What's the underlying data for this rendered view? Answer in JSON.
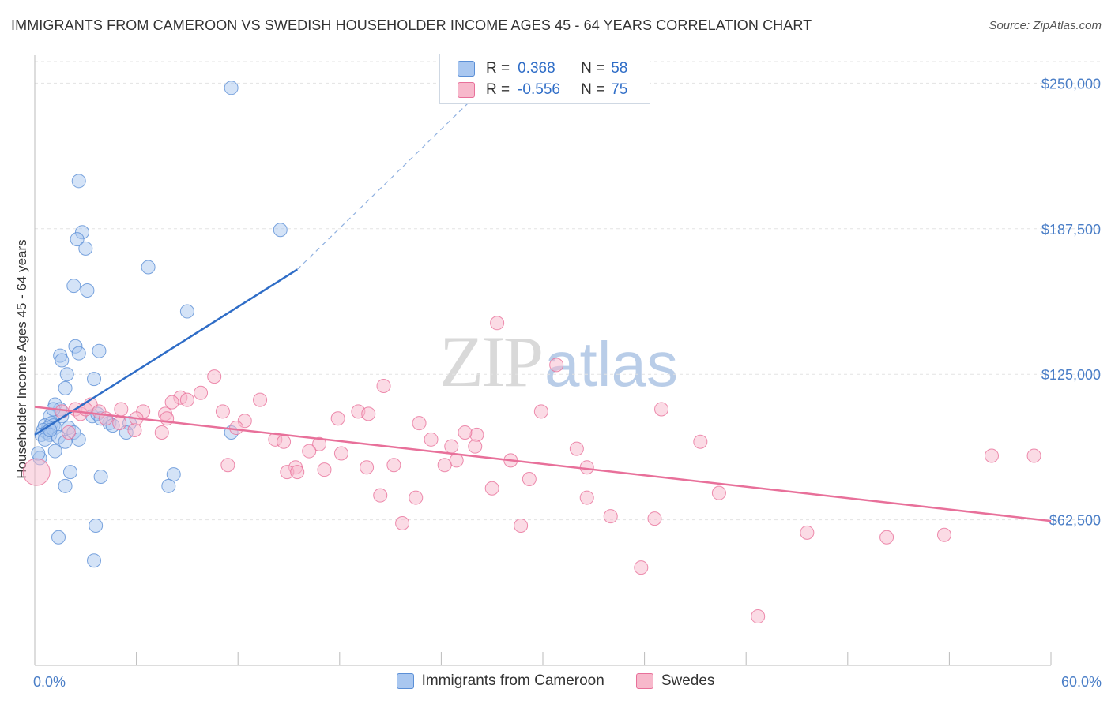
{
  "title": "IMMIGRANTS FROM CAMEROON VS SWEDISH HOUSEHOLDER INCOME AGES 45 - 64 YEARS CORRELATION CHART",
  "source": "Source: ZipAtlas.com",
  "watermark": {
    "zip": "ZIP",
    "atlas": "atlas"
  },
  "stats": [
    {
      "r_label": "R =",
      "r_value": "0.368",
      "n_label": "N =",
      "n_value": "58",
      "color": "#a9c7f0"
    },
    {
      "r_label": "R =",
      "r_value": "-0.556",
      "n_label": "N =",
      "n_value": "75",
      "color": "#f7b8cb"
    }
  ],
  "legend": [
    {
      "label": "Immigrants from Cameroon",
      "color": "#a9c7f0"
    },
    {
      "label": "Swedes",
      "color": "#f7b8cb"
    }
  ],
  "chart_data": {
    "type": "scatter",
    "title": "IMMIGRANTS FROM CAMEROON VS SWEDISH HOUSEHOLDER INCOME AGES 45 - 64 YEARS CORRELATION CHART",
    "xlabel": "",
    "ylabel": "Householder Income Ages 45 - 64 years",
    "xlim": [
      0,
      60
    ],
    "ylim": [
      0,
      262000
    ],
    "x_tick_labels": [
      "0.0%",
      "60.0%"
    ],
    "y_ticks": [
      62500,
      125000,
      187500,
      250000
    ],
    "y_tick_labels": [
      "$62,500",
      "$125,000",
      "$187,500",
      "$250,000"
    ],
    "series": [
      {
        "name": "Immigrants from Cameroon",
        "color": "#5b8fd6",
        "fill": "#a9c7f0",
        "trend": {
          "x0": 0,
          "y0": 99000,
          "x1": 15.5,
          "y1": 170000,
          "x_dash_end": 27.5,
          "y_dash_end": 255000
        },
        "points": [
          [
            11.6,
            248000
          ],
          [
            2.6,
            208000
          ],
          [
            14.5,
            187000
          ],
          [
            2.8,
            186000
          ],
          [
            2.5,
            183000
          ],
          [
            3.0,
            179000
          ],
          [
            6.7,
            171000
          ],
          [
            2.3,
            163000
          ],
          [
            3.1,
            161000
          ],
          [
            9.0,
            152000
          ],
          [
            2.4,
            137000
          ],
          [
            3.8,
            135000
          ],
          [
            2.6,
            134000
          ],
          [
            1.5,
            133000
          ],
          [
            1.6,
            131000
          ],
          [
            1.9,
            125000
          ],
          [
            3.5,
            123000
          ],
          [
            1.8,
            119000
          ],
          [
            1.2,
            112000
          ],
          [
            1.5,
            110000
          ],
          [
            0.9,
            107000
          ],
          [
            1.6,
            107000
          ],
          [
            3.4,
            107000
          ],
          [
            3.7,
            108000
          ],
          [
            0.6,
            103000
          ],
          [
            1.0,
            104000
          ],
          [
            1.1,
            103000
          ],
          [
            0.8,
            102000
          ],
          [
            1.2,
            102000
          ],
          [
            2.0,
            102000
          ],
          [
            4.4,
            104000
          ],
          [
            5.6,
            104000
          ],
          [
            4.6,
            103000
          ],
          [
            0.5,
            101000
          ],
          [
            0.7,
            100000
          ],
          [
            0.4,
            99000
          ],
          [
            0.9,
            99000
          ],
          [
            2.3,
            100000
          ],
          [
            1.4,
            98000
          ],
          [
            11.6,
            100000
          ],
          [
            5.4,
            100000
          ],
          [
            0.6,
            97000
          ],
          [
            1.8,
            96000
          ],
          [
            2.6,
            97000
          ],
          [
            1.2,
            92000
          ],
          [
            0.3,
            89000
          ],
          [
            0.2,
            91000
          ],
          [
            2.1,
            83000
          ],
          [
            3.9,
            81000
          ],
          [
            8.2,
            82000
          ],
          [
            1.8,
            77000
          ],
          [
            7.9,
            77000
          ],
          [
            3.6,
            60000
          ],
          [
            1.4,
            55000
          ],
          [
            3.5,
            45000
          ],
          [
            1.1,
            110000
          ],
          [
            3.9,
            106000
          ],
          [
            0.9,
            101000
          ]
        ]
      },
      {
        "name": "Swedes",
        "color": "#e8709a",
        "fill": "#f7b8cb",
        "trend": {
          "x0": 0,
          "y0": 111000,
          "x1": 60,
          "y1": 62000
        },
        "points": [
          [
            27.3,
            147000
          ],
          [
            30.8,
            129000
          ],
          [
            10.6,
            124000
          ],
          [
            20.6,
            120000
          ],
          [
            9.8,
            117000
          ],
          [
            8.6,
            115000
          ],
          [
            9.0,
            114000
          ],
          [
            13.3,
            114000
          ],
          [
            8.1,
            113000
          ],
          [
            3.3,
            112000
          ],
          [
            2.4,
            110000
          ],
          [
            3.8,
            109000
          ],
          [
            5.1,
            110000
          ],
          [
            2.7,
            108000
          ],
          [
            4.2,
            106000
          ],
          [
            6.4,
            109000
          ],
          [
            7.7,
            108000
          ],
          [
            11.1,
            109000
          ],
          [
            19.1,
            109000
          ],
          [
            19.7,
            108000
          ],
          [
            29.9,
            109000
          ],
          [
            37.0,
            110000
          ],
          [
            7.8,
            106000
          ],
          [
            12.4,
            105000
          ],
          [
            17.9,
            106000
          ],
          [
            5.0,
            104000
          ],
          [
            22.7,
            104000
          ],
          [
            11.9,
            102000
          ],
          [
            5.9,
            101000
          ],
          [
            7.5,
            100000
          ],
          [
            26.1,
            99000
          ],
          [
            25.4,
            100000
          ],
          [
            14.2,
            97000
          ],
          [
            14.7,
            96000
          ],
          [
            23.4,
            97000
          ],
          [
            16.8,
            95000
          ],
          [
            24.6,
            94000
          ],
          [
            26.0,
            94000
          ],
          [
            32.0,
            93000
          ],
          [
            39.3,
            96000
          ],
          [
            16.2,
            92000
          ],
          [
            18.1,
            91000
          ],
          [
            56.5,
            90000
          ],
          [
            59.0,
            90000
          ],
          [
            24.9,
            88000
          ],
          [
            28.1,
            88000
          ],
          [
            11.4,
            86000
          ],
          [
            19.6,
            85000
          ],
          [
            21.2,
            86000
          ],
          [
            24.2,
            86000
          ],
          [
            32.6,
            85000
          ],
          [
            15.4,
            85000
          ],
          [
            17.1,
            84000
          ],
          [
            14.9,
            83000
          ],
          [
            15.5,
            83000
          ],
          [
            29.2,
            80000
          ],
          [
            27.0,
            76000
          ],
          [
            40.4,
            74000
          ],
          [
            20.4,
            73000
          ],
          [
            22.5,
            72000
          ],
          [
            32.6,
            72000
          ],
          [
            34.0,
            64000
          ],
          [
            36.6,
            63000
          ],
          [
            21.7,
            61000
          ],
          [
            28.7,
            60000
          ],
          [
            45.6,
            57000
          ],
          [
            53.7,
            56000
          ],
          [
            50.3,
            55000
          ],
          [
            35.8,
            42000
          ],
          [
            42.7,
            21000
          ],
          [
            2.0,
            100000
          ],
          [
            6.0,
            106000
          ],
          [
            3.0,
            110000
          ],
          [
            1.6,
            109000
          ],
          [
            0.1,
            83000
          ]
        ]
      }
    ]
  }
}
